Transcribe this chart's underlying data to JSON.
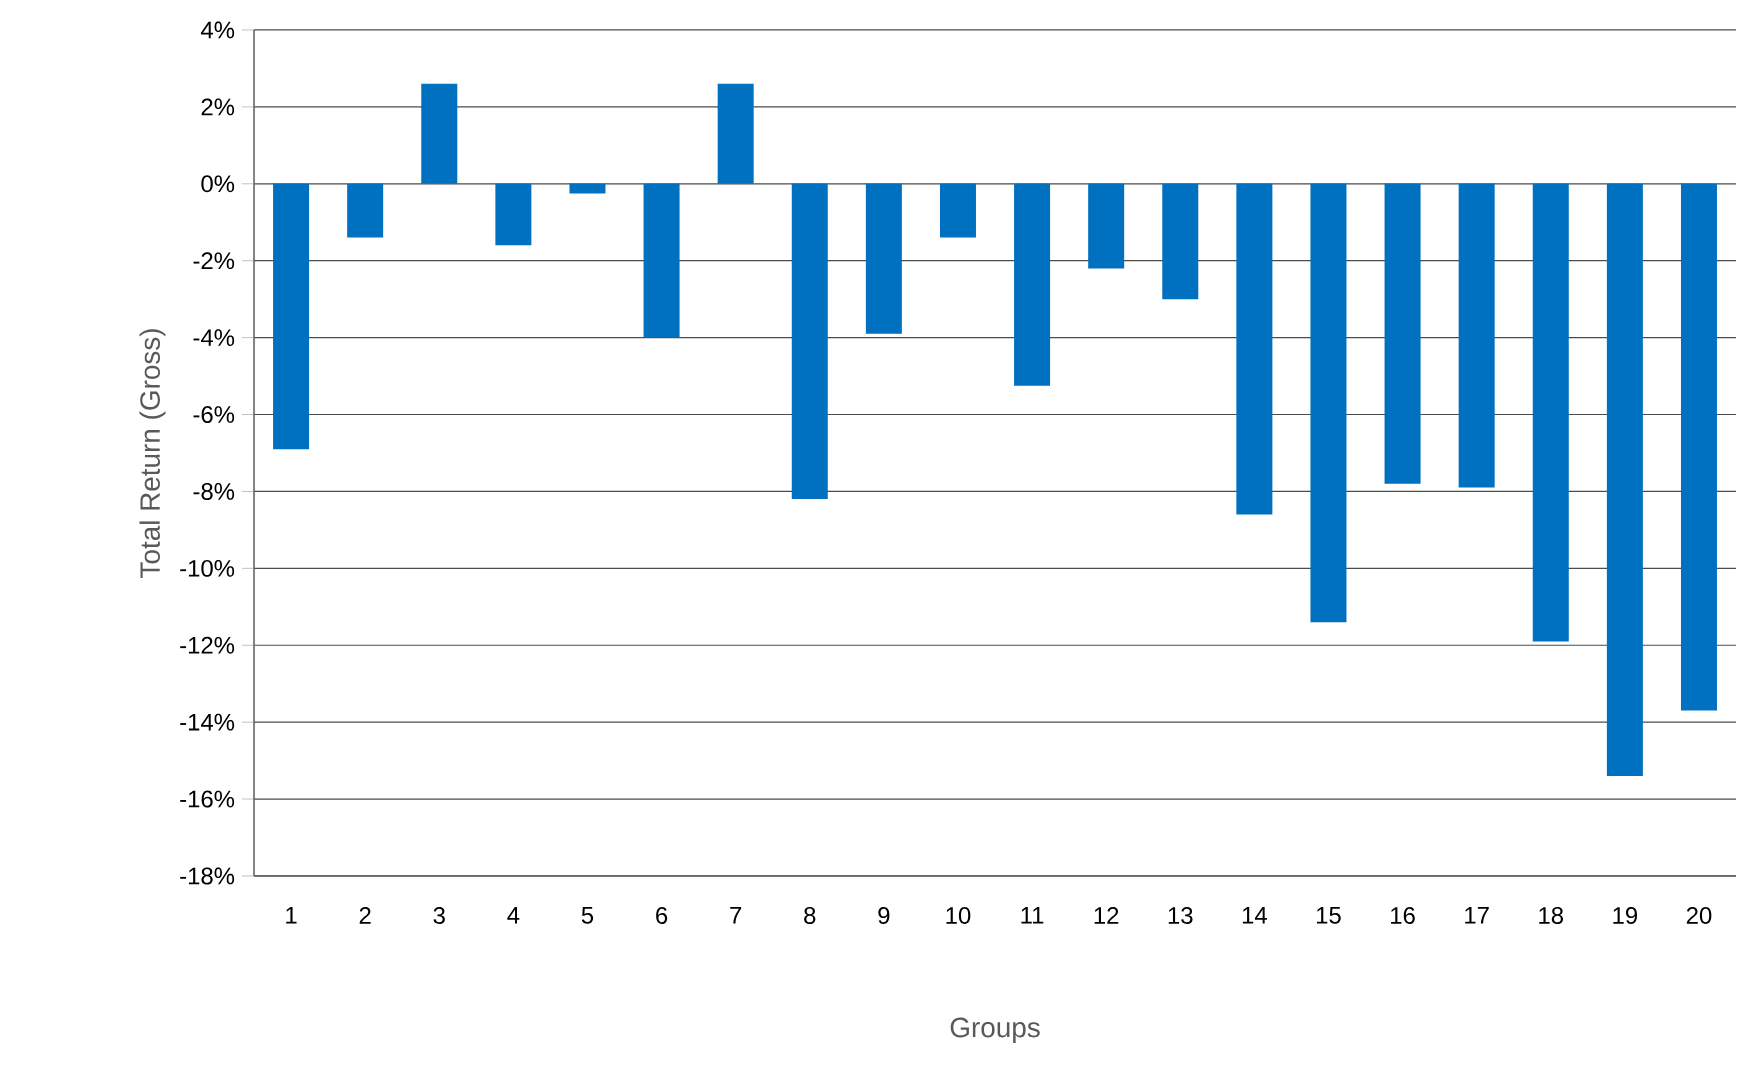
{
  "chart_data": {
    "type": "bar",
    "xlabel": "Groups",
    "ylabel": "Total Return (Gross)",
    "categories": [
      "1",
      "2",
      "3",
      "4",
      "5",
      "6",
      "7",
      "8",
      "9",
      "10",
      "11",
      "12",
      "13",
      "14",
      "15",
      "16",
      "17",
      "18",
      "19",
      "20"
    ],
    "values": [
      -6.9,
      -1.4,
      2.6,
      -1.6,
      -0.25,
      -4.0,
      2.6,
      -8.2,
      -3.9,
      -1.4,
      -5.25,
      -2.2,
      -3.0,
      -8.6,
      -11.4,
      -7.8,
      -7.9,
      -11.9,
      -15.4,
      -13.7
    ],
    "color": "#0070c0",
    "ylim": [
      -18,
      4
    ],
    "yticks": [
      {
        "value": -18,
        "label": "-18%"
      },
      {
        "value": -16,
        "label": "-16%"
      },
      {
        "value": -14,
        "label": "-14%"
      },
      {
        "value": -12,
        "label": "-12%"
      },
      {
        "value": -10,
        "label": "-10%"
      },
      {
        "value": -8,
        "label": "-8%"
      },
      {
        "value": -6,
        "label": "-6%"
      },
      {
        "value": -4,
        "label": "-4%"
      },
      {
        "value": -2,
        "label": "-2%"
      },
      {
        "value": 0,
        "label": "0%"
      },
      {
        "value": 2,
        "label": "2%"
      },
      {
        "value": 4,
        "label": "4%"
      }
    ],
    "grid": "y"
  }
}
